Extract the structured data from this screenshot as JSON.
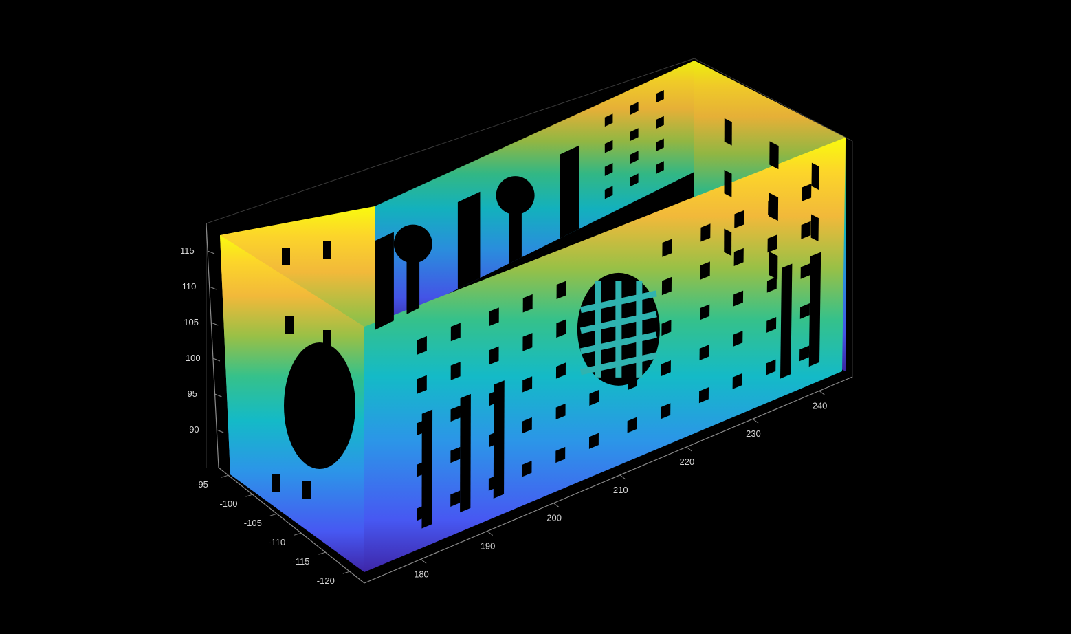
{
  "figure": {
    "background": "#000000",
    "description_type": "3d-point-cloud",
    "colormap": "parula",
    "colormap_stops": [
      "#3e26a8",
      "#4758f2",
      "#2c95e8",
      "#14bac7",
      "#35c18b",
      "#99c046",
      "#f2b93a",
      "#fcd52a",
      "#f9fb0e"
    ],
    "axis_color": "#8a8a8a",
    "grid_color": "#3a3a3a"
  },
  "axes": {
    "x_ticks": [
      "180",
      "190",
      "200",
      "210",
      "220",
      "230",
      "240"
    ],
    "y_ticks": [
      "-95",
      "-100",
      "-105",
      "-110",
      "-115",
      "-120"
    ],
    "z_ticks": [
      "115",
      "110",
      "105",
      "100",
      "95",
      "90"
    ]
  }
}
